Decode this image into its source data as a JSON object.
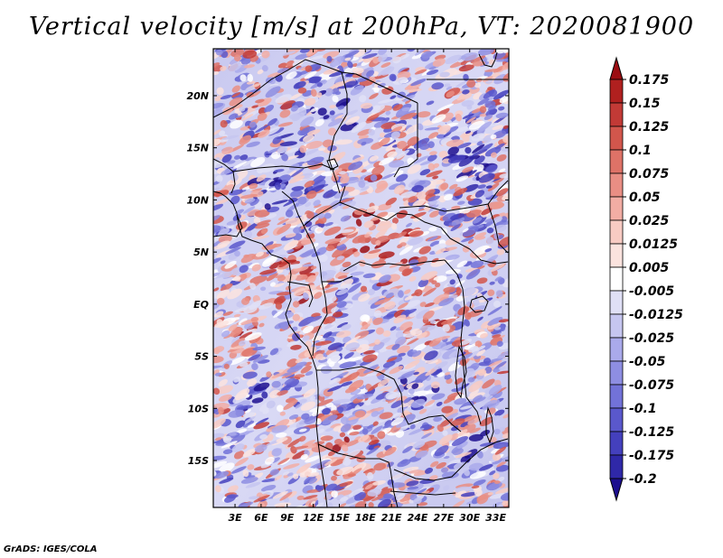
{
  "title": "Vertical velocity [m/s] at 200hPa, VT: 2020081900",
  "credit": "GrADS: IGES/COLA",
  "map": {
    "variable": "Vertical velocity",
    "units": "m/s",
    "level": "200hPa",
    "valid_time": "2020081900",
    "lon_labels": [
      "3E",
      "6E",
      "9E",
      "12E",
      "15E",
      "18E",
      "21E",
      "24E",
      "27E",
      "30E",
      "33E"
    ],
    "lat_labels": [
      "20N",
      "15N",
      "10N",
      "5N",
      "EQ",
      "5S",
      "10S",
      "15S"
    ],
    "lat_values": [
      20,
      15,
      10,
      5,
      0,
      -5,
      -10,
      -15
    ],
    "lon_values": [
      3,
      6,
      9,
      12,
      15,
      18,
      21,
      24,
      27,
      30,
      33
    ],
    "lon_range": [
      0.5,
      34.5
    ],
    "lat_range": [
      -19.5,
      24.5
    ]
  },
  "colorbar": {
    "levels": [
      "0.175",
      "0.15",
      "0.125",
      "0.1",
      "0.075",
      "0.05",
      "0.025",
      "0.0125",
      "0.005",
      "-0.005",
      "-0.0125",
      "-0.025",
      "-0.05",
      "-0.075",
      "-0.1",
      "-0.125",
      "-0.175",
      "-0.2"
    ],
    "colors": [
      "#9b0d12",
      "#b0201f",
      "#c23a36",
      "#d2564c",
      "#de7267",
      "#e98e84",
      "#f2ada4",
      "#f8cbc3",
      "#fbe3de",
      "#ffffff",
      "#e0e0f6",
      "#c6c6f0",
      "#aaaaeb",
      "#8e8ee2",
      "#7272d8",
      "#5a58cc",
      "#4440bd",
      "#2f28a8",
      "#1d0f8f"
    ]
  }
}
